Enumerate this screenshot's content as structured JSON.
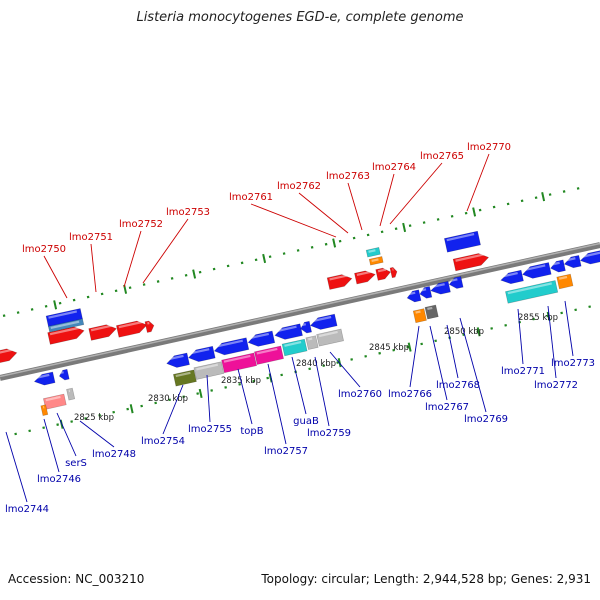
{
  "title": "Listeria monocytogenes EGD-e, complete genome",
  "footer": {
    "accession": "Accession: NC_003210",
    "summary": "Topology: circular; Length: 2,944,528 bp; Genes: 2,931"
  },
  "colors": {
    "forward_gene": "#ee1111",
    "reverse_gene": "#1122ee",
    "forward_label": "#cc0000",
    "reverse_label": "#0000aa",
    "tick": "#228822",
    "backbone": "#7a7a7a",
    "rna_cyan": "#22cccc",
    "orange": "#ff8800",
    "magenta": "#ee1199",
    "olive": "#667722",
    "gray_block": "#bbbbbb",
    "salmon": "#ff8888",
    "steel": "#4488bb"
  },
  "scale_labels": [
    "2825 kbp",
    "2830 kbp",
    "2835 kbp",
    "2840 kbp",
    "2845 kbp",
    "2850 kbp",
    "2855 kbp"
  ],
  "forward_labels": [
    "lmo2750",
    "lmo2751",
    "lmo2752",
    "lmo2753",
    "lmo2761",
    "lmo2762",
    "lmo2763",
    "lmo2764",
    "lmo2765",
    "lmo2770"
  ],
  "reverse_labels": [
    "lmo2744",
    "lmo2746",
    "serS",
    "lmo2748",
    "lmo2754",
    "lmo2755",
    "topB",
    "lmo2757",
    "guaB",
    "lmo2759",
    "lmo2760",
    "lmo2766",
    "lmo2767",
    "lmo2768",
    "lmo2769",
    "lmo2771",
    "lmo2772",
    "lmo2773"
  ]
}
